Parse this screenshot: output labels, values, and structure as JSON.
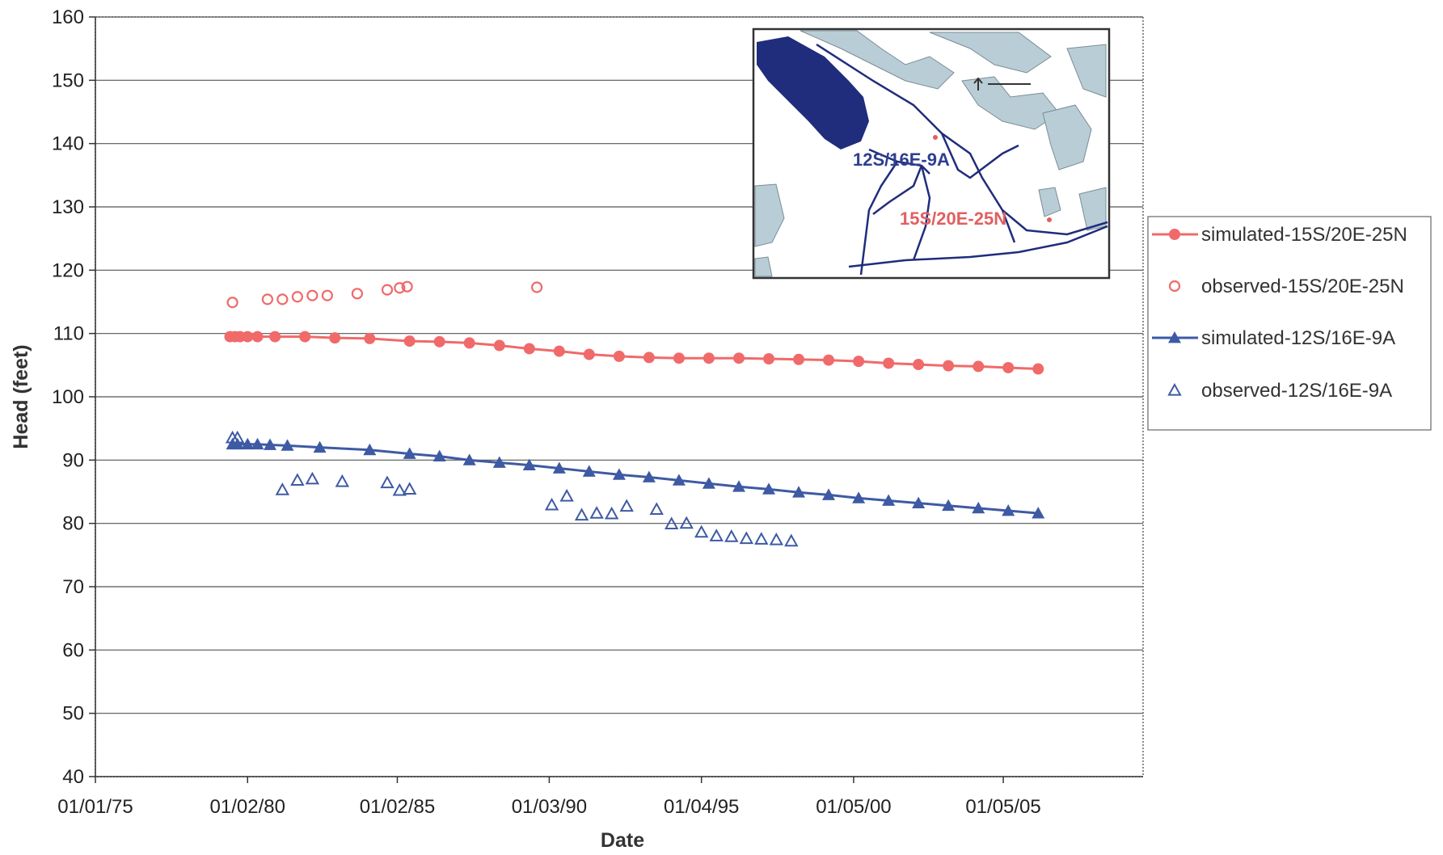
{
  "chart_data": {
    "type": "scatter",
    "title": "",
    "xlabel": "Date",
    "ylabel": "Head (feet)",
    "ylim": [
      40,
      160
    ],
    "xlim": [
      "1975-01-01",
      "2010-01-01"
    ],
    "yticks": [
      40,
      50,
      60,
      70,
      80,
      90,
      100,
      110,
      120,
      130,
      140,
      150,
      160
    ],
    "xticks": [
      {
        "label": "01/01/75",
        "date": "1975-01-01"
      },
      {
        "label": "01/02/80",
        "date": "1980-02-01"
      },
      {
        "label": "01/02/85",
        "date": "1985-02-01"
      },
      {
        "label": "01/03/90",
        "date": "1990-03-01"
      },
      {
        "label": "01/04/95",
        "date": "1995-04-01"
      },
      {
        "label": "01/05/00",
        "date": "2000-05-01"
      },
      {
        "label": "01/05/05",
        "date": "2005-05-01"
      }
    ],
    "grid": "horizontal",
    "legend": "right",
    "series": [
      {
        "name": "simulated-15S/20E-25N",
        "style": "line-filled-circle",
        "color": "#f06a6a",
        "x": [
          "1979-07-01",
          "1979-09-01",
          "1979-11-01",
          "1980-02-01",
          "1980-06-01",
          "1981-01-01",
          "1982-01-01",
          "1983-01-01",
          "1984-03-01",
          "1985-07-01",
          "1986-07-01",
          "1987-07-01",
          "1988-07-01",
          "1989-07-01",
          "1990-07-01",
          "1991-07-01",
          "1992-07-01",
          "1993-07-01",
          "1994-07-01",
          "1995-07-01",
          "1996-07-01",
          "1997-07-01",
          "1998-07-01",
          "1999-07-01",
          "2000-07-01",
          "2001-07-01",
          "2002-07-01",
          "2003-07-01",
          "2004-07-01",
          "2005-07-01",
          "2006-07-01"
        ],
        "y": [
          109.5,
          109.5,
          109.5,
          109.5,
          109.5,
          109.5,
          109.5,
          109.3,
          109.2,
          108.8,
          108.7,
          108.5,
          108.1,
          107.6,
          107.2,
          106.7,
          106.4,
          106.2,
          106.1,
          106.1,
          106.1,
          106.0,
          105.9,
          105.8,
          105.6,
          105.3,
          105.1,
          104.9,
          104.8,
          104.6,
          104.4
        ]
      },
      {
        "name": "observed-15S/20E-25N",
        "style": "open-circle",
        "color": "#f06a6a",
        "x": [
          "1979-08-01",
          "1980-10-01",
          "1981-04-01",
          "1981-10-01",
          "1982-04-01",
          "1982-10-01",
          "1983-10-01",
          "1984-10-01",
          "1985-03-01",
          "1985-06-01",
          "1989-10-01"
        ],
        "y": [
          114.9,
          115.4,
          115.4,
          115.8,
          116.0,
          116.0,
          116.3,
          116.9,
          117.2,
          117.4,
          117.3
        ]
      },
      {
        "name": "simulated-12S/16E-9A",
        "style": "line-filled-triangle",
        "color": "#3e5aa4",
        "x": [
          "1979-08-01",
          "1979-10-01",
          "1980-02-01",
          "1980-06-01",
          "1980-11-01",
          "1981-06-01",
          "1982-07-01",
          "1984-03-01",
          "1985-07-01",
          "1986-07-01",
          "1987-07-01",
          "1988-07-01",
          "1989-07-01",
          "1990-07-01",
          "1991-07-01",
          "1992-07-01",
          "1993-07-01",
          "1994-07-01",
          "1995-07-01",
          "1996-07-01",
          "1997-07-01",
          "1998-07-01",
          "1999-07-01",
          "2000-07-01",
          "2001-07-01",
          "2002-07-01",
          "2003-07-01",
          "2004-07-01",
          "2005-07-01",
          "2006-07-01"
        ],
        "y": [
          92.5,
          92.5,
          92.5,
          92.5,
          92.4,
          92.3,
          92.0,
          91.6,
          91.0,
          90.6,
          90.0,
          89.6,
          89.2,
          88.7,
          88.2,
          87.7,
          87.3,
          86.8,
          86.3,
          85.8,
          85.4,
          84.9,
          84.5,
          84.0,
          83.6,
          83.2,
          82.8,
          82.4,
          82.0,
          81.6
        ]
      },
      {
        "name": "observed-12S/16E-9A",
        "style": "open-triangle",
        "color": "#3e5aa4",
        "x": [
          "1979-08-01",
          "1979-10-01",
          "1981-04-01",
          "1981-10-01",
          "1982-04-01",
          "1983-04-01",
          "1984-10-01",
          "1985-03-01",
          "1985-07-01",
          "1990-04-01",
          "1990-10-01",
          "1991-04-01",
          "1991-10-01",
          "1992-04-01",
          "1992-10-01",
          "1993-10-01",
          "1994-04-01",
          "1994-10-01",
          "1995-04-01",
          "1995-10-01",
          "1996-04-01",
          "1996-10-01",
          "1997-04-01",
          "1997-10-01",
          "1998-04-01"
        ],
        "y": [
          93.5,
          93.5,
          85.3,
          86.8,
          87.0,
          86.6,
          86.4,
          85.2,
          85.4,
          82.9,
          84.3,
          81.3,
          81.6,
          81.5,
          82.7,
          82.2,
          79.9,
          80.0,
          78.6,
          78.0,
          77.9,
          77.6,
          77.5,
          77.4,
          77.2
        ]
      }
    ]
  },
  "inset_map": {
    "labels": [
      "12S/16E-9A",
      "15S/20E-25N"
    ],
    "colors": {
      "water": "#1f2d7c",
      "land": "#b9cdd6",
      "river": "#1f2d7c",
      "label_a": "#2f3e8f",
      "label_b": "#e06060"
    }
  }
}
